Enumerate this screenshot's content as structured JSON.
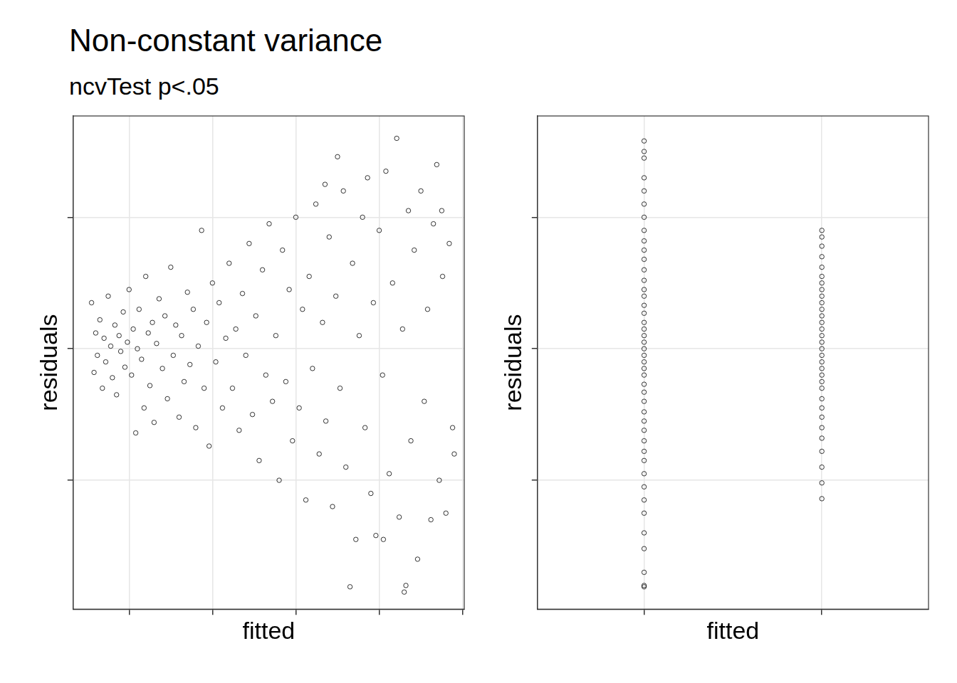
{
  "chart_data": [
    {
      "type": "scatter",
      "title": "Non-constant variance",
      "subtitle": "ncvTest p<.05",
      "x_label": "fitted",
      "y_label": "residuals",
      "color": "#000000",
      "marker": "open_circle",
      "grid": true,
      "tick_labels": false,
      "xlim": [
        0.33,
        5.02
      ],
      "ylim": [
        -1.98,
        1.77
      ],
      "xticks": [
        1,
        2,
        3,
        4,
        5
      ],
      "yticks": [
        -1,
        0,
        1
      ],
      "x": [
        0.55,
        0.58,
        0.6,
        0.62,
        0.65,
        0.68,
        0.7,
        0.72,
        0.75,
        0.78,
        0.8,
        0.83,
        0.85,
        0.88,
        0.9,
        0.93,
        0.95,
        0.98,
        1.0,
        1.03,
        1.05,
        1.08,
        1.1,
        1.12,
        1.15,
        1.18,
        1.2,
        1.23,
        1.25,
        1.28,
        1.3,
        1.33,
        1.36,
        1.4,
        1.43,
        1.46,
        1.5,
        1.53,
        1.56,
        1.6,
        1.63,
        1.66,
        1.7,
        1.73,
        1.77,
        1.8,
        1.83,
        1.87,
        1.9,
        1.93,
        1.96,
        2.0,
        2.04,
        2.08,
        2.12,
        2.16,
        2.2,
        2.24,
        2.28,
        2.32,
        2.36,
        2.4,
        2.44,
        2.48,
        2.52,
        2.56,
        2.6,
        2.64,
        2.68,
        2.72,
        2.76,
        2.8,
        2.84,
        2.88,
        2.92,
        2.96,
        3.0,
        3.04,
        3.08,
        3.12,
        3.16,
        3.2,
        3.24,
        3.28,
        3.32,
        3.36,
        3.4,
        3.44,
        3.48,
        3.5,
        3.53,
        3.57,
        3.6,
        3.65,
        3.68,
        3.72,
        3.76,
        3.8,
        3.83,
        3.86,
        3.9,
        3.93,
        3.96,
        4.0,
        4.04,
        4.08,
        4.12,
        4.16,
        4.21,
        4.24,
        4.28,
        4.32,
        4.35,
        4.38,
        4.42,
        4.46,
        4.5,
        4.54,
        4.58,
        4.62,
        4.65,
        4.69,
        4.72,
        4.76,
        4.8,
        4.84,
        4.88,
        4.9,
        4.75,
        4.3,
        4.05,
        3.35
      ],
      "values": [
        0.35,
        -0.18,
        0.12,
        -0.05,
        0.22,
        -0.3,
        0.08,
        -0.1,
        0.4,
        0.02,
        -0.22,
        0.18,
        -0.35,
        0.1,
        -0.02,
        0.28,
        -0.14,
        0.05,
        0.45,
        -0.2,
        0.15,
        -0.64,
        0.0,
        0.3,
        -0.08,
        -0.45,
        0.55,
        0.12,
        -0.28,
        0.2,
        -0.56,
        0.04,
        0.38,
        -0.15,
        0.25,
        -0.38,
        0.62,
        -0.05,
        0.18,
        -0.52,
        0.1,
        -0.25,
        0.43,
        -0.12,
        0.3,
        -0.6,
        0.02,
        0.9,
        -0.3,
        0.2,
        -0.74,
        0.5,
        -0.1,
        0.35,
        -0.45,
        0.08,
        0.65,
        -0.3,
        0.15,
        -0.62,
        0.42,
        -0.05,
        0.8,
        -0.5,
        0.25,
        -0.85,
        0.6,
        -0.2,
        0.95,
        -0.4,
        0.1,
        -1.0,
        0.75,
        -0.25,
        0.45,
        -0.7,
        1.0,
        -0.45,
        0.3,
        -1.15,
        0.55,
        -0.15,
        1.1,
        -0.8,
        0.2,
        -0.55,
        0.85,
        -1.2,
        0.4,
        1.46,
        -0.3,
        1.2,
        -0.9,
        -1.81,
        0.65,
        -1.45,
        0.1,
        1.0,
        -0.6,
        1.3,
        -1.1,
        0.35,
        -1.42,
        0.9,
        -0.2,
        1.35,
        -0.95,
        0.5,
        1.6,
        -1.28,
        0.15,
        -1.8,
        1.05,
        -0.7,
        0.75,
        -1.6,
        1.2,
        -0.4,
        0.3,
        -1.3,
        0.95,
        1.4,
        -1.0,
        0.55,
        -1.25,
        0.8,
        -0.6,
        -0.8,
        1.05,
        -1.85,
        -1.45,
        1.25
      ]
    },
    {
      "type": "scatter",
      "x_label": "fitted",
      "y_label": "residuals",
      "color": "#000000",
      "marker": "open_circle",
      "grid": true,
      "tick_labels": false,
      "xlim": [
        -0.6,
        1.6
      ],
      "ylim": [
        -1.98,
        1.77
      ],
      "xticks": [
        0,
        1
      ],
      "yticks": [
        -1,
        0,
        1
      ],
      "x": [
        0,
        0,
        0,
        0,
        0,
        0,
        0,
        0,
        0,
        0,
        0,
        0,
        0,
        0,
        0,
        0,
        0,
        0,
        0,
        0,
        0,
        0,
        0,
        0,
        0,
        0,
        0,
        0,
        0,
        0,
        0,
        0,
        0,
        0,
        0,
        0,
        0,
        0,
        0,
        0,
        0,
        0,
        0,
        0,
        1,
        1,
        1,
        1,
        1,
        1,
        1,
        1,
        1,
        1,
        1,
        1,
        1,
        1,
        1,
        1,
        1,
        1,
        1,
        1,
        1,
        1,
        1,
        1,
        1,
        1,
        1,
        1,
        1,
        1,
        1,
        1
      ],
      "values": [
        1.58,
        1.5,
        1.45,
        1.3,
        1.2,
        1.1,
        1.0,
        0.9,
        0.82,
        0.75,
        0.68,
        0.6,
        0.52,
        0.45,
        0.4,
        0.33,
        0.27,
        0.2,
        0.15,
        0.1,
        0.05,
        0.0,
        -0.05,
        -0.1,
        -0.15,
        -0.2,
        -0.27,
        -0.33,
        -0.4,
        -0.48,
        -0.55,
        -0.62,
        -0.7,
        -0.78,
        -0.85,
        -0.95,
        -1.05,
        -1.15,
        -1.25,
        -1.4,
        -1.52,
        -1.7,
        -1.8,
        -1.81,
        0.9,
        0.85,
        0.78,
        0.7,
        0.62,
        0.55,
        0.5,
        0.45,
        0.4,
        0.35,
        0.3,
        0.25,
        0.2,
        0.15,
        0.1,
        0.05,
        0.0,
        -0.05,
        -0.1,
        -0.15,
        -0.2,
        -0.25,
        -0.3,
        -0.38,
        -0.45,
        -0.52,
        -0.6,
        -0.68,
        -0.78,
        -0.9,
        -1.02,
        -1.14
      ]
    }
  ]
}
